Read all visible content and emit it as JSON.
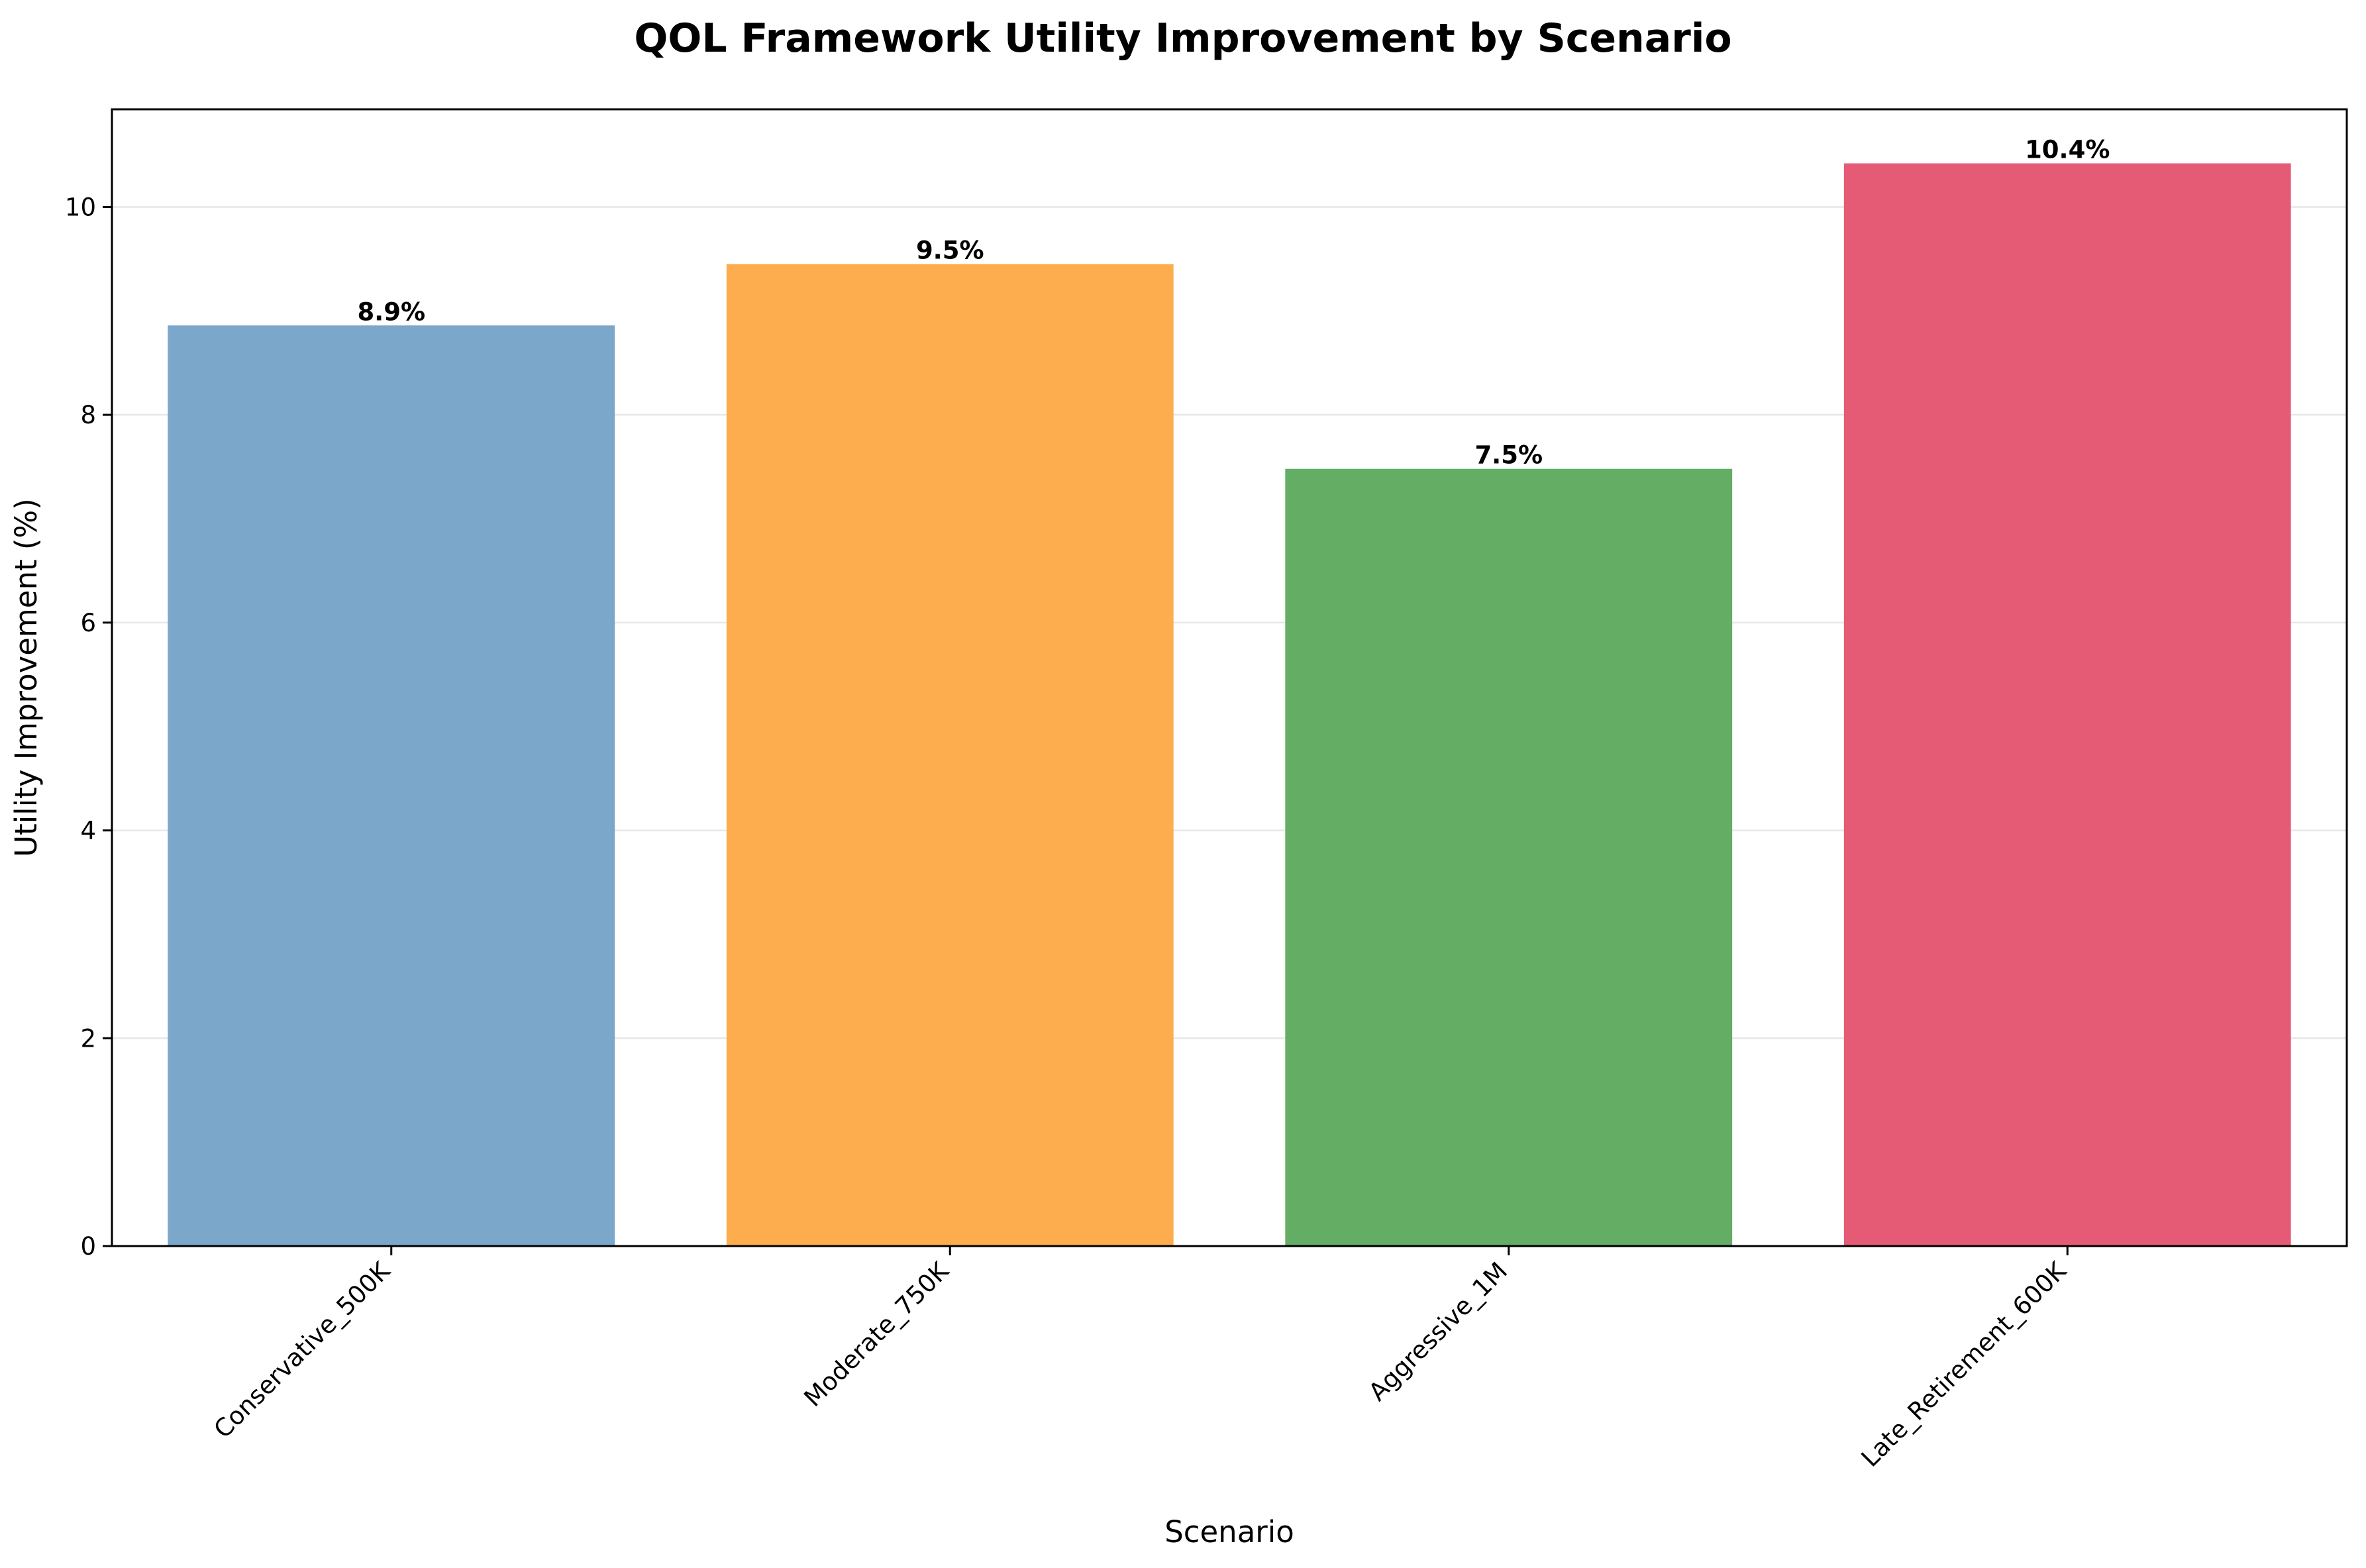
{
  "chart_data": {
    "type": "bar",
    "title": "QOL Framework Utility Improvement by Scenario",
    "xlabel": "Scenario",
    "ylabel": "Utility Improvement (%)",
    "categories": [
      "Conservative_500K",
      "Moderate_750K",
      "Aggressive_1M",
      "Late_Retirement_600K"
    ],
    "values": [
      8.86,
      9.45,
      7.48,
      10.42
    ],
    "value_labels": [
      "8.9%",
      "9.5%",
      "7.5%",
      "10.4%"
    ],
    "colors": [
      "#7BA7CB",
      "#FDAD4E",
      "#64AD64",
      "#E55B75"
    ],
    "ylim": [
      0,
      10.94
    ],
    "yticks": [
      0,
      2,
      4,
      6,
      8,
      10
    ],
    "grid": "y",
    "legend": "none"
  }
}
